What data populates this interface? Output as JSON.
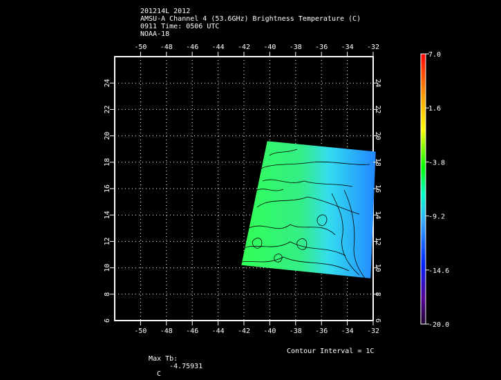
{
  "header": {
    "line1": "201214L 2012",
    "line2": "AMSU-A Channel 4 (53.6GHz) Brightness Temperature (C)",
    "line3": "0911 Time: 0506 UTC",
    "line4": "NOAA-18"
  },
  "map": {
    "lon_ticks": [
      "-50",
      "-48",
      "-46",
      "-44",
      "-42",
      "-40",
      "-38",
      "-36",
      "-34",
      "-32"
    ],
    "lat_ticks": [
      "8",
      "10",
      "12",
      "14",
      "16",
      "18",
      "20",
      "22",
      "24"
    ],
    "lat_bottom_label": "6",
    "lon_range": [
      -52,
      -32
    ],
    "lat_range": [
      6,
      26
    ],
    "swath_corner_lonlat": [
      [
        -40.2,
        19.6
      ],
      [
        -31.8,
        18.8
      ],
      [
        -32.2,
        9.2
      ],
      [
        -42.2,
        10.2
      ]
    ],
    "grid": true
  },
  "colorbar": {
    "labels": [
      "7.0",
      "1.6",
      "-3.8",
      "-9.2",
      "-14.6",
      "-20.0"
    ],
    "colors": [
      "#ff0000",
      "#ff9900",
      "#ffff00",
      "#00ff00",
      "#00ffcc",
      "#33aaff",
      "#0022ff",
      "#550099",
      "#200030"
    ]
  },
  "footer": {
    "max_label": "Max Tb:",
    "max_value": "-4.75931",
    "max_unit": "C",
    "contour": "Contour Interval = 1C"
  }
}
